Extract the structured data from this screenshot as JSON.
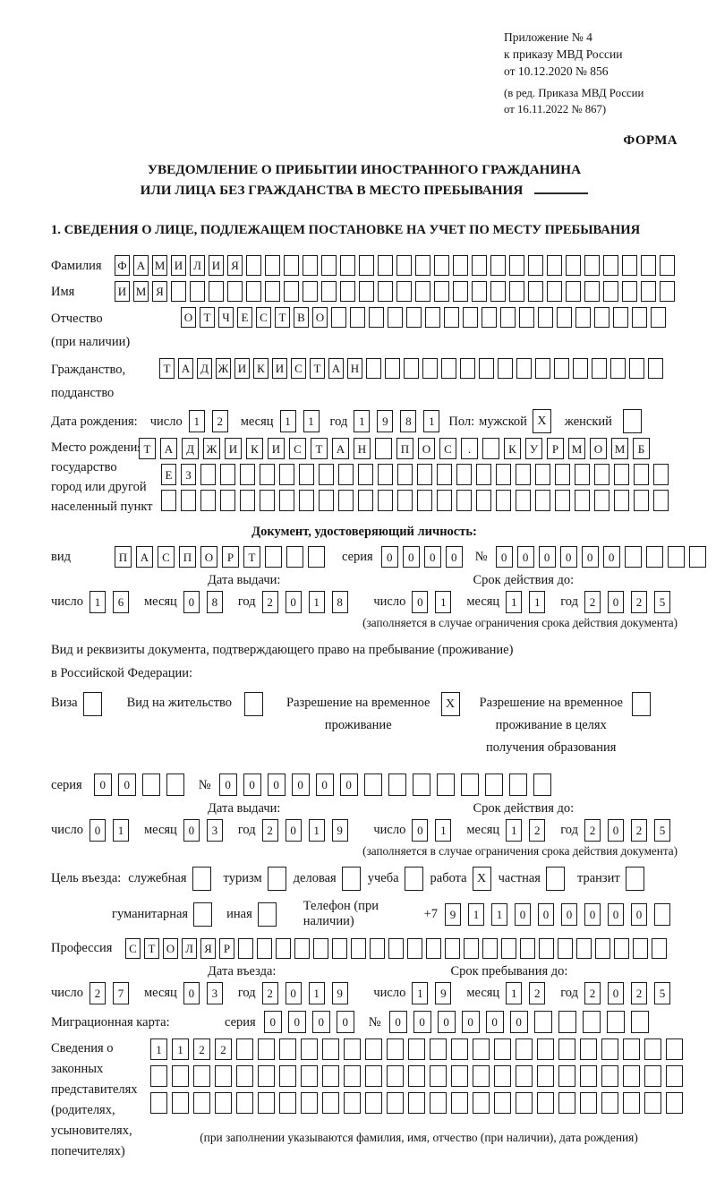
{
  "header": {
    "appendix_line1": "Приложение № 4",
    "appendix_line2": "к приказу МВД России",
    "appendix_line3": "от 10.12.2020 № 856",
    "revision_line1": "(в ред. Приказа МВД России",
    "revision_line2": "от 16.11.2022 № 867)",
    "form_label": "ФОРМА"
  },
  "title": {
    "line1": "УВЕДОМЛЕНИЕ О ПРИБЫТИИ ИНОСТРАННОГО ГРАЖДАНИНА",
    "line2": "ИЛИ ЛИЦА БЕЗ ГРАЖДАНСТВА В МЕСТО ПРЕБЫВАНИЯ"
  },
  "section1_heading": "1. СВЕДЕНИЯ О ЛИЦЕ, ПОДЛЕЖАЩЕМ ПОСТАНОВКЕ НА УЧЕТ ПО МЕСТУ ПРЕБЫВАНИЯ",
  "labels": {
    "surname": "Фамилия",
    "name": "Имя",
    "patronymic": "Отчество",
    "patronymic_note": "(при наличии)",
    "citizenship": "Гражданство,",
    "citizenship2": "подданство",
    "birthdate": "Дата рождения:",
    "day": "число",
    "month": "месяц",
    "year": "год",
    "sex": "Пол:",
    "sex_male": "мужской",
    "sex_female": "женский",
    "birthplace1": "Место рождения:",
    "birthplace2": "государство",
    "birthplace3": "город или другой",
    "birthplace4": "населенный пункт",
    "iddoc_heading": "Документ, удостоверяющий личность:",
    "doc_type": "вид",
    "series": "серия",
    "number_sign": "№",
    "issue_date": "Дата выдачи:",
    "expiry_date": "Срок действия до:",
    "expiry_note": "(заполняется в случае ограничения срока действия документа)",
    "resdoc_line1": "Вид и реквизиты документа, подтверждающего право на пребывание (проживание)",
    "resdoc_line2": "в Российской Федерации:",
    "visa": "Виза",
    "residence_permit": "Вид на жительство",
    "temp_residence1": "Разрешение на временное",
    "temp_residence2": "проживание",
    "temp_residence_edu1": "Разрешение на временное",
    "temp_residence_edu2": "проживание в целях",
    "temp_residence_edu3": "получения образования",
    "purpose": "Цель въезда:",
    "purpose_official": "служебная",
    "purpose_tourism": "туризм",
    "purpose_business": "деловая",
    "purpose_study": "учеба",
    "purpose_work": "работа",
    "purpose_private": "частная",
    "purpose_transit": "транзит",
    "purpose_humanitarian": "гуманитарная",
    "purpose_other": "иная",
    "phone": "Телефон (при наличии)",
    "phone_prefix": "+7",
    "profession": "Профессия",
    "entry_date": "Дата въезда:",
    "stay_until": "Срок пребывания до:",
    "migration_card": "Миграционная карта:",
    "legal_rep1": "Сведения о",
    "legal_rep2": "законных",
    "legal_rep3": "представителях",
    "legal_rep4": "(родителях,",
    "legal_rep5": "усыновителях,",
    "legal_rep6": "попечителях)",
    "legal_rep_note": "(при заполнении указываются фамилия, имя, отчество (при наличии), дата рождения)"
  },
  "cells": {
    "surname": {
      "value": "ФАМИЛИЯ",
      "length": 30
    },
    "name": {
      "value": "ИМЯ",
      "length": 30
    },
    "patronymic": {
      "value": "ОТЧЕСТВО",
      "length": 26
    },
    "citizenship": {
      "value": "ТАДЖИКИСТАН",
      "length": 27
    },
    "birth_day": {
      "value": "12",
      "length": 2
    },
    "birth_month": {
      "value": "11",
      "length": 2
    },
    "birth_year": {
      "value": "1981",
      "length": 4
    },
    "sex_male": {
      "value": "X",
      "length": 1
    },
    "sex_female": {
      "value": "",
      "length": 1
    },
    "birthplace_row1": {
      "value": "ТАДЖИКИСТАН ПОС. КУРМОМБ",
      "length": 24
    },
    "birthplace_row2": {
      "value": "ЕЗ",
      "length": 26
    },
    "birthplace_row3": {
      "value": "",
      "length": 26
    },
    "iddoc_type": {
      "value": "ПАСПОРТ",
      "length": 10
    },
    "iddoc_series": {
      "value": "0000",
      "length": 4
    },
    "iddoc_number": {
      "value": "000000",
      "length": 10
    },
    "iddoc_issue_day": {
      "value": "16",
      "length": 2
    },
    "iddoc_issue_month": {
      "value": "08",
      "length": 2
    },
    "iddoc_issue_year": {
      "value": "2018",
      "length": 4
    },
    "iddoc_expiry_day": {
      "value": "01",
      "length": 2
    },
    "iddoc_expiry_month": {
      "value": "11",
      "length": 2
    },
    "iddoc_expiry_year": {
      "value": "2025",
      "length": 4
    },
    "permit_visa": {
      "value": "",
      "length": 1
    },
    "permit_residence": {
      "value": "",
      "length": 1
    },
    "permit_temp_residence": {
      "value": "X",
      "length": 1
    },
    "permit_temp_residence_edu": {
      "value": "",
      "length": 1
    },
    "resdoc_series": {
      "value": "00",
      "length": 4
    },
    "resdoc_number": {
      "value": "000000",
      "length": 14
    },
    "resdoc_issue_day": {
      "value": "01",
      "length": 2
    },
    "resdoc_issue_month": {
      "value": "03",
      "length": 2
    },
    "resdoc_issue_year": {
      "value": "2019",
      "length": 4
    },
    "resdoc_expiry_day": {
      "value": "01",
      "length": 2
    },
    "resdoc_expiry_month": {
      "value": "12",
      "length": 2
    },
    "resdoc_expiry_year": {
      "value": "2025",
      "length": 4
    },
    "purpose_official": {
      "value": "",
      "length": 1
    },
    "purpose_tourism": {
      "value": "",
      "length": 1
    },
    "purpose_business": {
      "value": "",
      "length": 1
    },
    "purpose_study": {
      "value": "",
      "length": 1
    },
    "purpose_work": {
      "value": "X",
      "length": 1
    },
    "purpose_private": {
      "value": "",
      "length": 1
    },
    "purpose_transit": {
      "value": "",
      "length": 1
    },
    "purpose_humanitarian": {
      "value": "",
      "length": 1
    },
    "purpose_other": {
      "value": "",
      "length": 1
    },
    "phone": {
      "value": "911000000",
      "length": 10
    },
    "profession": {
      "value": "СТОЛЯР",
      "length": 29
    },
    "entry_day": {
      "value": "27",
      "length": 2
    },
    "entry_month": {
      "value": "03",
      "length": 2
    },
    "entry_year": {
      "value": "2019",
      "length": 4
    },
    "stay_day": {
      "value": "19",
      "length": 2
    },
    "stay_month": {
      "value": "12",
      "length": 2
    },
    "stay_year": {
      "value": "2025",
      "length": 4
    },
    "migcard_series": {
      "value": "0000",
      "length": 4
    },
    "migcard_number": {
      "value": "000000",
      "length": 11
    },
    "legal_rep_row1": {
      "value": "1122",
      "length": 25
    },
    "legal_rep_row2": {
      "value": "",
      "length": 25
    },
    "legal_rep_row3": {
      "value": "",
      "length": 25
    }
  }
}
